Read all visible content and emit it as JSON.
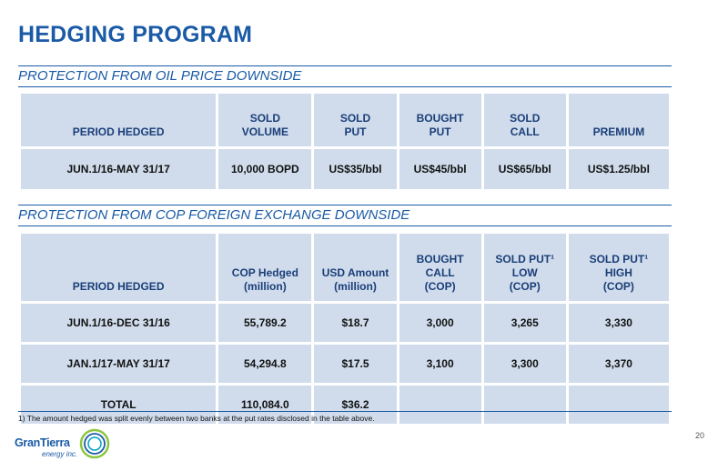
{
  "title": "HEDGING PROGRAM",
  "oil": {
    "heading": "PROTECTION FROM OIL PRICE DOWNSIDE",
    "headers": [
      [
        "PERIOD HEDGED"
      ],
      [
        "SOLD",
        "VOLUME"
      ],
      [
        "SOLD",
        "PUT"
      ],
      [
        "BOUGHT",
        "PUT"
      ],
      [
        "SOLD",
        "CALL"
      ],
      [
        "PREMIUM"
      ]
    ],
    "rows": [
      [
        "JUN.1/16-MAY 31/17",
        "10,000 BOPD",
        "US$35/bbl",
        "US$45/bbl",
        "US$65/bbl",
        "US$1.25/bbl"
      ]
    ]
  },
  "fx": {
    "heading": "PROTECTION FROM COP FOREIGN EXCHANGE DOWNSIDE",
    "headers": [
      [
        "PERIOD HEDGED"
      ],
      [
        "COP Hedged",
        "(million)"
      ],
      [
        "USD Amount",
        "(million)"
      ],
      [
        "BOUGHT",
        "CALL",
        "(COP)"
      ],
      [
        "SOLD PUT¹",
        "LOW",
        "(COP)"
      ],
      [
        "SOLD PUT¹",
        "HIGH",
        "(COP)"
      ]
    ],
    "rows": [
      [
        "JUN.1/16-DEC 31/16",
        "55,789.2",
        "$18.7",
        "3,000",
        "3,265",
        "3,330"
      ],
      [
        "JAN.1/17-MAY 31/17",
        "54,294.8",
        "$17.5",
        "3,100",
        "3,300",
        "3,370"
      ],
      [
        "TOTAL",
        "110,084.0",
        "$36.2",
        "",
        "",
        ""
      ]
    ]
  },
  "footnote": "1) The amount hedged was split evenly between two banks at the put rates disclosed in the table above.",
  "page_number": "20",
  "logo": {
    "name": "GranTierra",
    "sub": "energy inc."
  }
}
